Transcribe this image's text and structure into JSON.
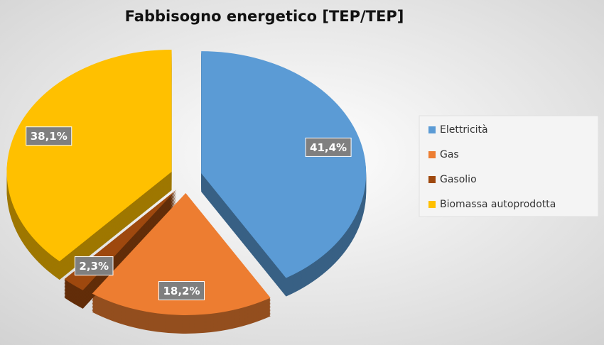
{
  "chart_data": {
    "type": "pie",
    "title": "Fabbisogno energetico [TEP/TEP]",
    "categories": [
      "Elettricità",
      "Gas",
      "Gasolio",
      "Biomassa autoprodotta"
    ],
    "values": [
      41.4,
      18.2,
      2.3,
      38.1
    ],
    "value_labels": [
      "41,4%",
      "18,2%",
      "2,3%",
      "38,1%"
    ],
    "colors": [
      "#5b9bd5",
      "#ed7d31",
      "#9e480e",
      "#ffc000"
    ],
    "legend": "right"
  }
}
